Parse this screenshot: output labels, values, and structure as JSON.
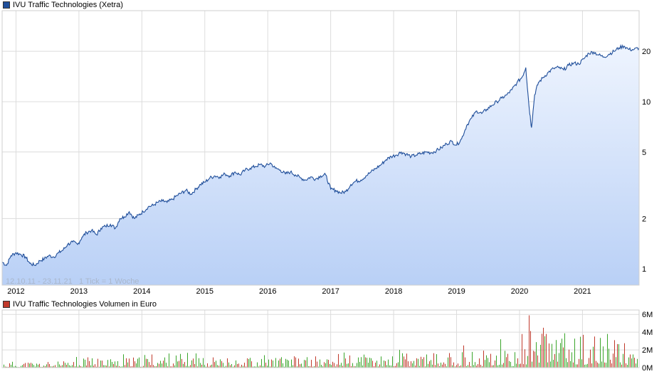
{
  "chart_data": [
    {
      "type": "area",
      "title": "IVU Traffic Technologies (Xetra)",
      "info": "12.10.11 - 23.11.21   1 Tick = 1 Woche",
      "y_scale": "log",
      "ylim": [
        0.8,
        35
      ],
      "yticks": [
        {
          "value": 1,
          "label": "1"
        },
        {
          "value": 2,
          "label": "2"
        },
        {
          "value": 5,
          "label": "5"
        },
        {
          "value": 10,
          "label": "10"
        },
        {
          "value": 20,
          "label": "20"
        }
      ],
      "xlim": [
        2011.78,
        2021.9
      ],
      "xticks": [
        {
          "value": 2012.0,
          "label": "2012"
        },
        {
          "value": 2013.0,
          "label": "2013"
        },
        {
          "value": 2014.0,
          "label": "2014"
        },
        {
          "value": 2015.0,
          "label": "2015"
        },
        {
          "value": 2016.0,
          "label": "2016"
        },
        {
          "value": 2017.0,
          "label": "2017"
        },
        {
          "value": 2018.0,
          "label": "2018"
        },
        {
          "value": 2019.0,
          "label": "2019"
        },
        {
          "value": 2020.0,
          "label": "2020"
        },
        {
          "value": 2021.0,
          "label": "2021"
        }
      ],
      "grid": true,
      "line_color": "#1f4e9a",
      "fill_top": "#eef4fe",
      "fill_bottom": "#b9d0f6",
      "series": [
        {
          "x": [
            2011.78,
            2011.85,
            2011.92,
            2012.0,
            2012.08,
            2012.15,
            2012.22,
            2012.3,
            2012.38,
            2012.45,
            2012.52,
            2012.6,
            2012.68,
            2012.75,
            2012.82,
            2012.9,
            2012.98,
            2013.05,
            2013.12,
            2013.2,
            2013.28,
            2013.35,
            2013.42,
            2013.5,
            2013.58,
            2013.65,
            2013.72,
            2013.8,
            2013.88,
            2013.95,
            2014.02,
            2014.1,
            2014.18,
            2014.25,
            2014.33,
            2014.4,
            2014.48,
            2014.56,
            2014.63,
            2014.7,
            2014.78,
            2014.86,
            2014.93,
            2015.0,
            2015.08,
            2015.16,
            2015.24,
            2015.32,
            2015.4,
            2015.48,
            2015.56,
            2015.64,
            2015.72,
            2015.8,
            2015.88,
            2015.96,
            2016.04,
            2016.12,
            2016.2,
            2016.28,
            2016.36,
            2016.44,
            2016.52,
            2016.6,
            2016.68,
            2016.76,
            2016.84,
            2016.92,
            2017.0,
            2017.08,
            2017.16,
            2017.24,
            2017.32,
            2017.4,
            2017.48,
            2017.56,
            2017.64,
            2017.72,
            2017.8,
            2017.88,
            2017.96,
            2018.04,
            2018.12,
            2018.2,
            2018.28,
            2018.36,
            2018.44,
            2018.52,
            2018.6,
            2018.68,
            2018.76,
            2018.84,
            2018.92,
            2019.0,
            2019.08,
            2019.16,
            2019.24,
            2019.32,
            2019.4,
            2019.48,
            2019.56,
            2019.64,
            2019.72,
            2019.8,
            2019.88,
            2019.96,
            2020.04,
            2020.1,
            2020.15,
            2020.19,
            2020.24,
            2020.3,
            2020.38,
            2020.46,
            2020.54,
            2020.62,
            2020.7,
            2020.78,
            2020.86,
            2020.94,
            2021.02,
            2021.1,
            2021.18,
            2021.26,
            2021.34,
            2021.42,
            2021.5,
            2021.58,
            2021.66,
            2021.74,
            2021.82,
            2021.9
          ],
          "values": [
            1.1,
            1.05,
            1.2,
            1.25,
            1.22,
            1.18,
            1.08,
            1.05,
            1.12,
            1.15,
            1.2,
            1.18,
            1.25,
            1.3,
            1.4,
            1.45,
            1.4,
            1.55,
            1.65,
            1.7,
            1.6,
            1.75,
            1.8,
            1.85,
            1.75,
            2.0,
            2.05,
            2.2,
            2.0,
            2.1,
            2.2,
            2.35,
            2.4,
            2.5,
            2.55,
            2.5,
            2.6,
            2.75,
            2.85,
            2.95,
            2.8,
            3.0,
            3.2,
            3.3,
            3.5,
            3.6,
            3.55,
            3.7,
            3.6,
            3.8,
            3.65,
            3.9,
            4.0,
            4.1,
            4.2,
            4.1,
            4.3,
            4.0,
            3.9,
            3.7,
            3.8,
            3.65,
            3.5,
            3.4,
            3.55,
            3.45,
            3.6,
            3.65,
            3.0,
            2.95,
            2.85,
            2.9,
            3.2,
            3.35,
            3.4,
            3.6,
            3.8,
            4.0,
            4.2,
            4.5,
            4.7,
            4.8,
            5.0,
            4.85,
            4.7,
            4.8,
            4.9,
            5.0,
            4.95,
            5.1,
            5.3,
            5.6,
            5.8,
            5.5,
            6.0,
            7.2,
            8.0,
            8.8,
            8.5,
            9.0,
            9.5,
            10.0,
            10.5,
            11.0,
            11.8,
            13.0,
            14.0,
            16.0,
            9.5,
            7.0,
            11.0,
            13.0,
            14.0,
            15.0,
            15.8,
            16.0,
            15.5,
            16.5,
            17.0,
            16.8,
            18.0,
            19.5,
            19.8,
            19.0,
            18.5,
            19.2,
            20.0,
            21.0,
            21.5,
            20.5,
            20.5,
            21.0
          ]
        }
      ]
    },
    {
      "type": "bar",
      "title": "IVU Traffic Technologies Volumen in Euro",
      "ylim": [
        0,
        6500000
      ],
      "yticks": [
        {
          "value": 0,
          "label": "0M"
        },
        {
          "value": 2000000,
          "label": "2M"
        },
        {
          "value": 4000000,
          "label": "4M"
        },
        {
          "value": 6000000,
          "label": "6M"
        }
      ],
      "grid": true,
      "up_color": "#3aa52a",
      "down_color": "#c0392b",
      "years": [
        2012,
        2013,
        2014,
        2015,
        2016,
        2017,
        2018,
        2019,
        2020,
        2021
      ],
      "year_avg_volume": [
        300000,
        500000,
        700000,
        550000,
        550000,
        650000,
        700000,
        800000,
        1800000,
        1600000
      ],
      "peaks": [
        {
          "x": 2012.95,
          "value": 1200000
        },
        {
          "x": 2013.7,
          "value": 1500000
        },
        {
          "x": 2014.85,
          "value": 1600000
        },
        {
          "x": 2015.95,
          "value": 1400000
        },
        {
          "x": 2017.2,
          "value": 1700000
        },
        {
          "x": 2018.1,
          "value": 2000000
        },
        {
          "x": 2019.1,
          "value": 2500000
        },
        {
          "x": 2019.7,
          "value": 3200000
        },
        {
          "x": 2020.15,
          "value": 5900000
        },
        {
          "x": 2020.38,
          "value": 4500000
        },
        {
          "x": 2020.42,
          "value": 3800000
        },
        {
          "x": 2021.0,
          "value": 3700000
        },
        {
          "x": 2021.5,
          "value": 3100000
        }
      ]
    }
  ]
}
